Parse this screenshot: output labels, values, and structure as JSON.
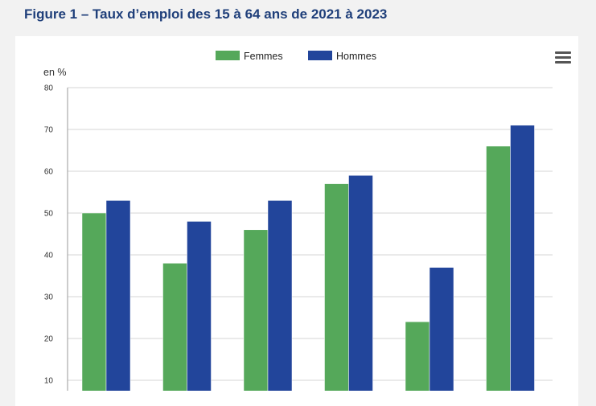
{
  "figure": {
    "title": "Figure 1 – Taux d’emploi des 15 à 64 ans de 2021 à 2023"
  },
  "menu": {
    "icon": "hamburger-menu-icon"
  },
  "chart_data": {
    "type": "bar",
    "ylabel": "en %",
    "ylim": [
      0,
      80
    ],
    "yticks": [
      10,
      20,
      30,
      40,
      50,
      60,
      70,
      80
    ],
    "grid": true,
    "legend_position": "top-center",
    "categories": [
      "",
      "",
      "",
      "",
      "",
      ""
    ],
    "series": [
      {
        "name": "Femmes",
        "color": "#55a85a",
        "values": [
          50,
          38,
          46,
          57,
          24,
          66
        ]
      },
      {
        "name": "Hommes",
        "color": "#22459b",
        "values": [
          53,
          48,
          53,
          59,
          37,
          71
        ]
      }
    ]
  }
}
